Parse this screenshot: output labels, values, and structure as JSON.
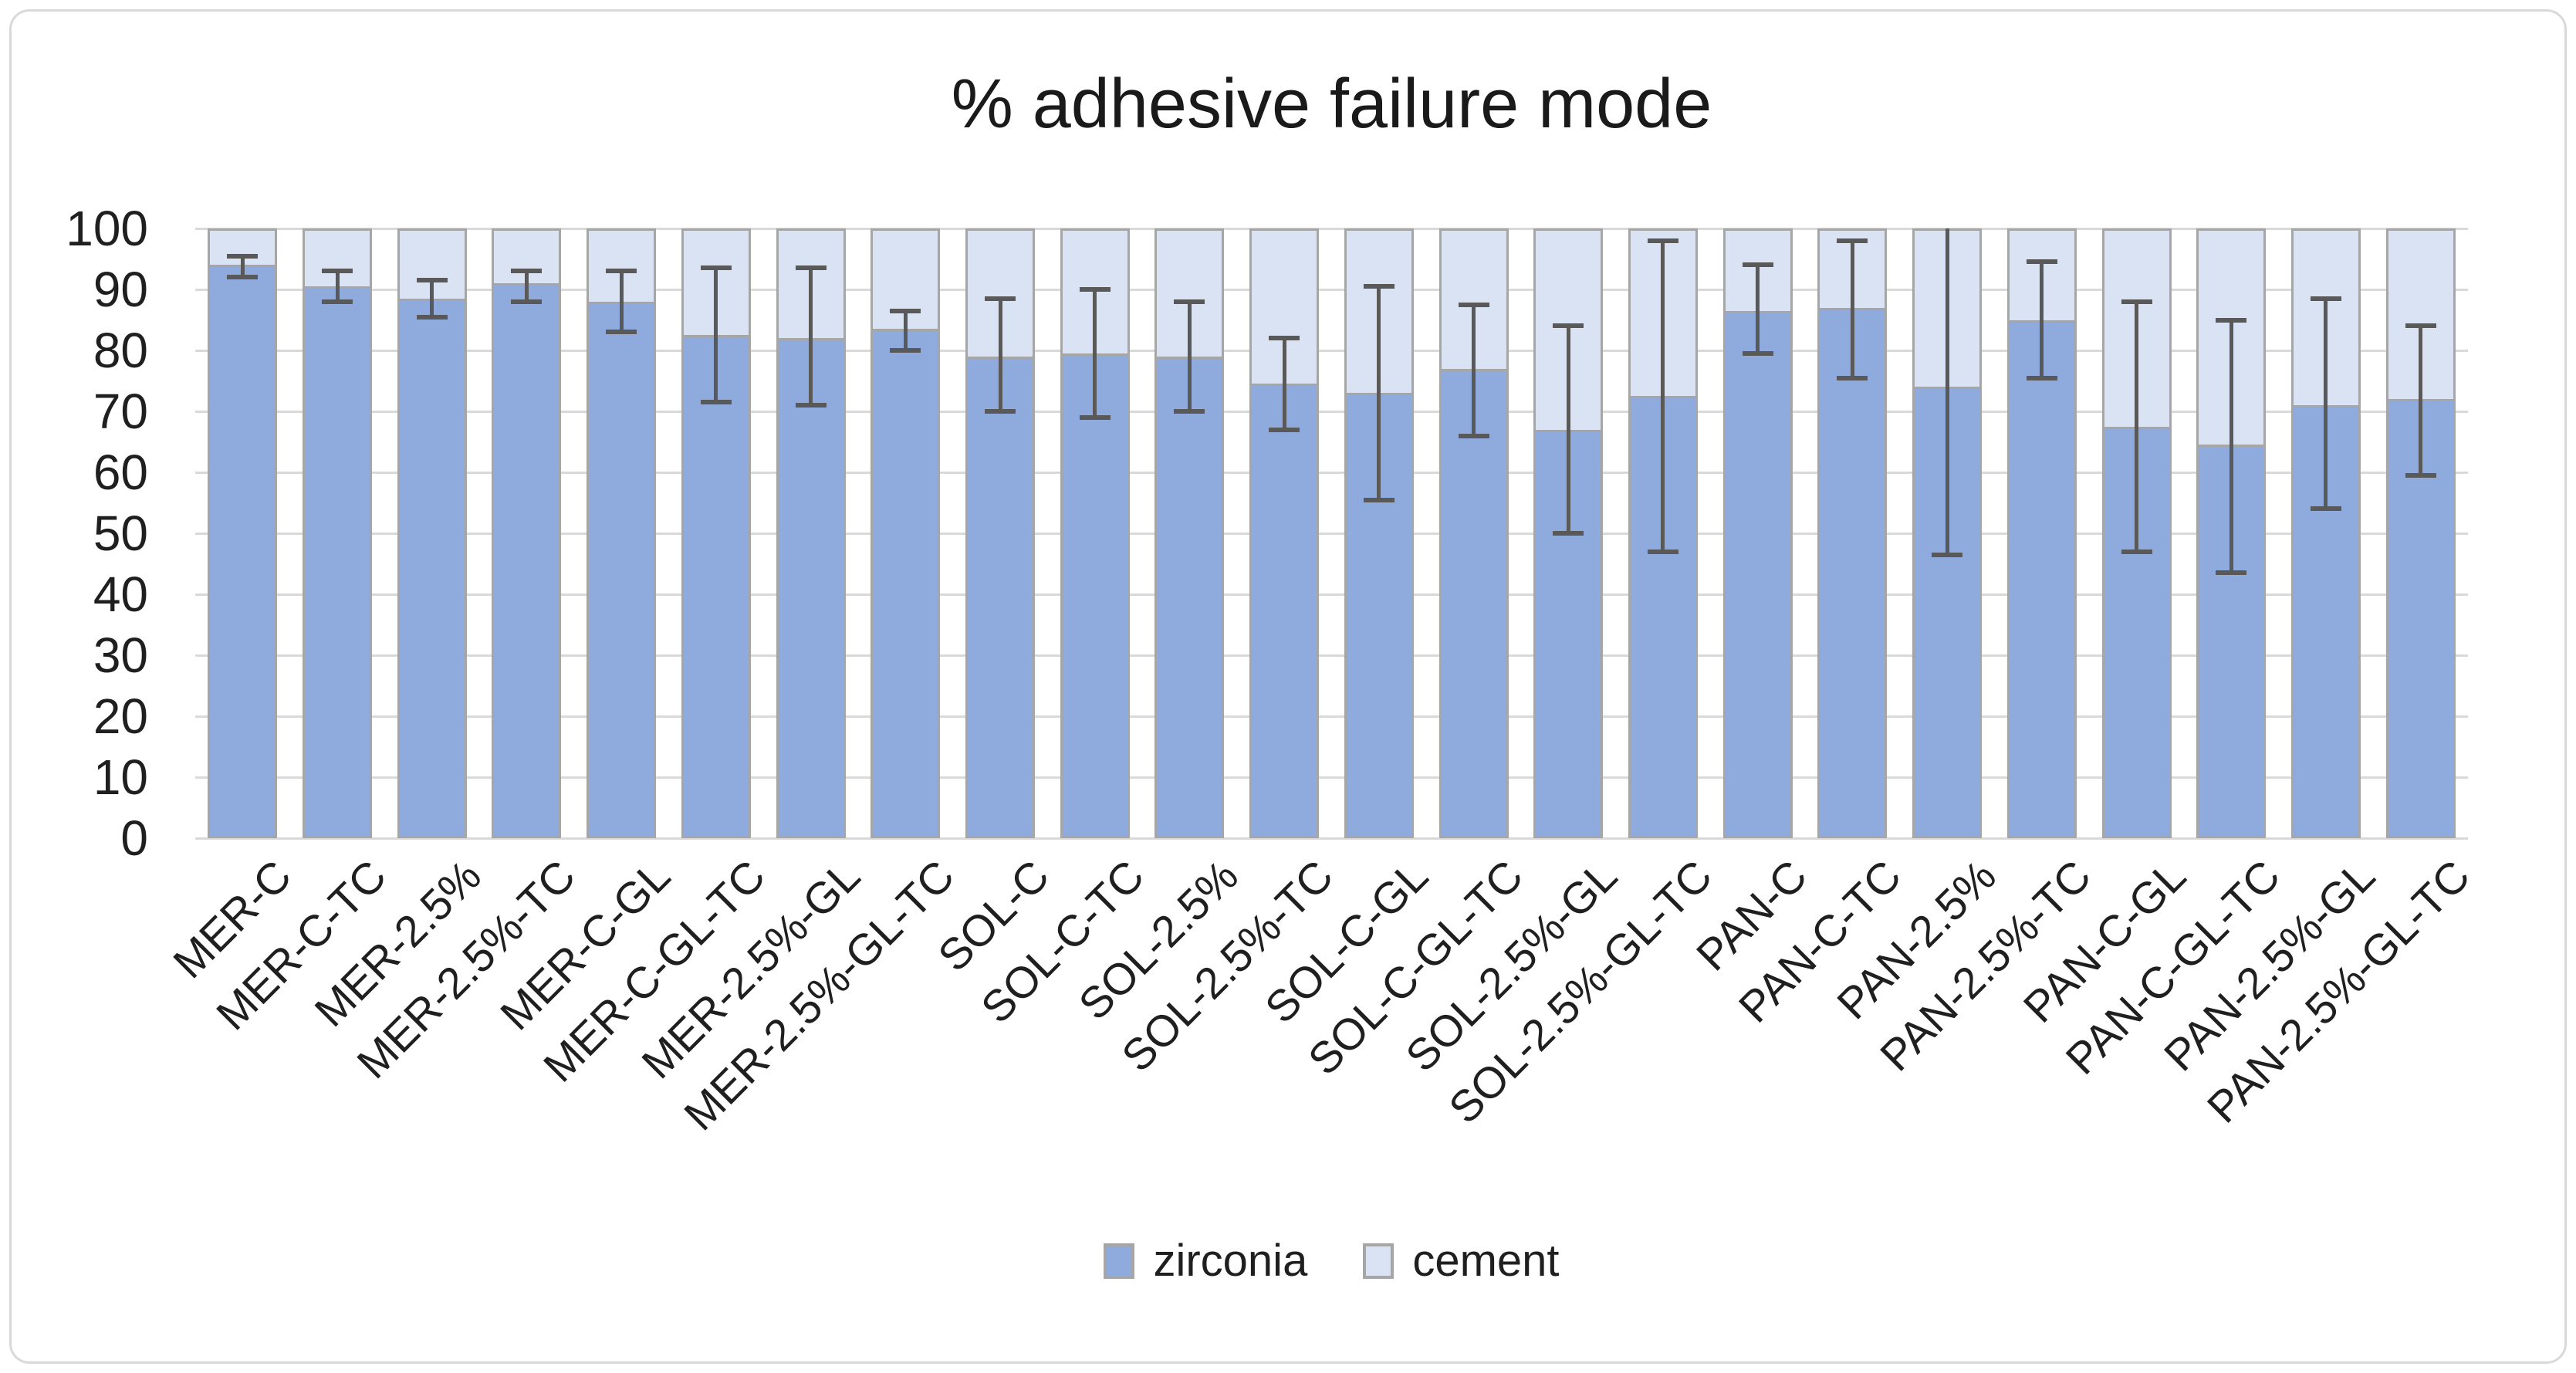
{
  "title": "% adhesive failure mode",
  "colors": {
    "zirconia_fill": "#8FAADC",
    "cement_fill": "#DAE3F3",
    "bar_border": "#A6A6A6",
    "error_bar": "#595959",
    "gridline": "#D9D9D9",
    "chart_border": "#D9D9D9",
    "text": "#1F1F1F"
  },
  "chart_data": {
    "type": "bar",
    "stacked": true,
    "title": "% adhesive failure mode",
    "categories": [
      "MER-C",
      "MER-C-TC",
      "MER-2.5%",
      "MER-2.5%-TC",
      "MER-C-GL",
      "MER-C-GL-TC",
      "MER-2.5%-GL",
      "MER-2.5%-GL-TC",
      "SOL-C",
      "SOL-C-TC",
      "SOL-2.5%",
      "SOL-2.5%-TC",
      "SOL-C-GL",
      "SOL-C-GL-TC",
      "SOL-2.5%-GL",
      "SOL-2.5%-GL-TC",
      "PAN-C",
      "PAN-C-TC",
      "PAN-2.5%",
      "PAN-2.5%-TC",
      "PAN-C-GL",
      "PAN-C-GL-TC",
      "PAN-2.5%-GL",
      "PAN-2.5%-GL-TC"
    ],
    "series": [
      {
        "name": "zirconia",
        "color": "#8FAADC",
        "values": [
          94,
          90.5,
          88.5,
          91,
          88,
          82.5,
          82,
          83.5,
          79,
          79.5,
          79,
          74.5,
          73,
          77,
          67,
          72.5,
          86.5,
          87,
          74,
          85,
          67.5,
          64.5,
          71,
          72
        ]
      },
      {
        "name": "cement",
        "color": "#DAE3F3",
        "values": [
          6,
          9.5,
          11.5,
          9,
          12,
          17.5,
          18,
          16.5,
          21,
          20.5,
          21,
          25.5,
          27,
          23,
          33,
          27.5,
          13.5,
          13,
          26,
          15,
          32.5,
          35.5,
          29,
          28
        ]
      }
    ],
    "error_bars": {
      "attached_to": "zirconia",
      "low": [
        92,
        88,
        85.5,
        88,
        83,
        71.5,
        71,
        80,
        70,
        69,
        70,
        67,
        55.5,
        66,
        50,
        47,
        79.5,
        75.5,
        46.5,
        75.5,
        47,
        43.5,
        54,
        59.5
      ],
      "high": [
        95.5,
        93,
        91.5,
        93,
        93,
        93.5,
        93.5,
        86.5,
        88.5,
        90,
        88,
        82,
        90.5,
        87.5,
        84,
        98,
        94,
        98,
        102,
        94.5,
        88,
        85,
        88.5,
        84
      ],
      "note": "high values above 100 are clipped at the plot top without a cap"
    },
    "ylim": [
      0,
      100
    ],
    "ytick_step": 10,
    "ytick_labels": [
      "0",
      "10",
      "20",
      "30",
      "40",
      "50",
      "60",
      "70",
      "80",
      "90",
      "100"
    ],
    "grid": "horizontal",
    "legend_position": "bottom",
    "x_label_rotation_deg": 45
  },
  "legend": {
    "items": [
      {
        "label": "zirconia",
        "color": "#8FAADC"
      },
      {
        "label": "cement",
        "color": "#DAE3F3"
      }
    ]
  }
}
